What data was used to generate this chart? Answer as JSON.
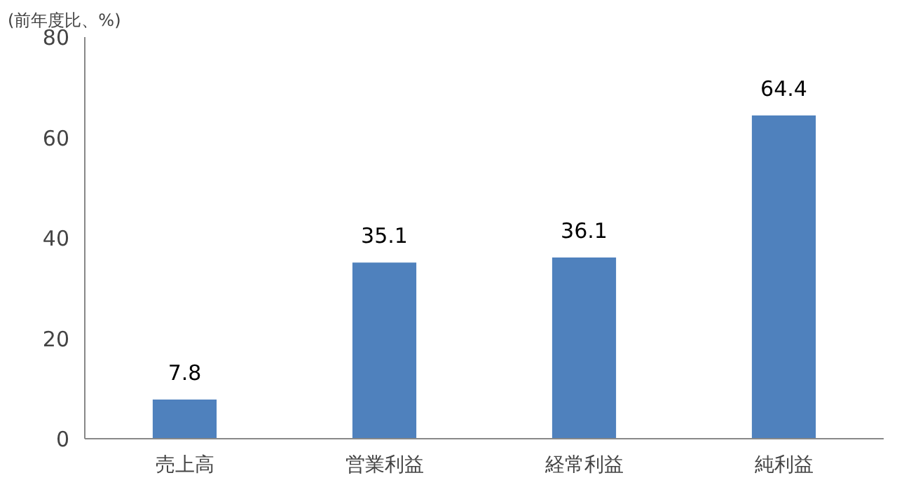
{
  "chart_data": {
    "type": "bar",
    "ylabel": "(前年度比、%)",
    "categories": [
      "売上高",
      "営業利益",
      "経常利益",
      "純利益"
    ],
    "values": [
      7.8,
      35.1,
      36.1,
      64.4
    ],
    "color": "#4f81bd",
    "ylim": [
      0,
      80
    ],
    "yticks": [
      0,
      20,
      40,
      60,
      80
    ],
    "grid": false,
    "data_labels": true
  }
}
